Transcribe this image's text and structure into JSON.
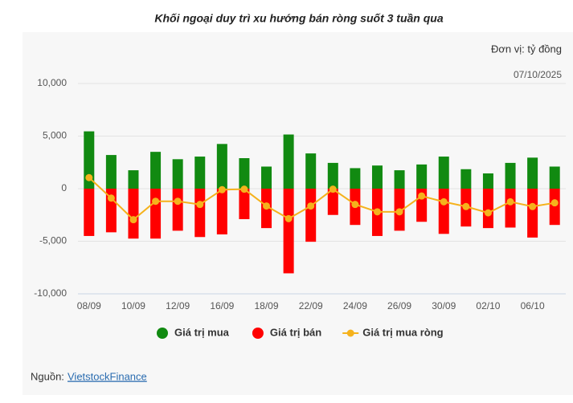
{
  "chart_data": {
    "type": "bar",
    "title": "Khối ngoại duy trì xu hướng bán ròng suốt 3 tuần qua",
    "unit_note": "Đơn vị: tỷ đồng",
    "date_note": "07/10/2025",
    "source_label": "Nguồn:",
    "source_link": "VietstockFinance",
    "categories": [
      "08/09",
      null,
      "10/09",
      null,
      "12/09",
      null,
      "16/09",
      null,
      "18/09",
      null,
      "22/09",
      null,
      "24/09",
      null,
      "26/09",
      null,
      "30/09",
      null,
      "02/10",
      null,
      "06/10",
      null
    ],
    "series": [
      {
        "name": "Giá trị mua",
        "type": "bar",
        "color": "#118a11",
        "values": [
          5450,
          3200,
          1750,
          3500,
          2800,
          3050,
          4250,
          2900,
          2100,
          5150,
          3350,
          2450,
          1950,
          2200,
          1750,
          2300,
          3050,
          1850,
          1450,
          2450,
          2950,
          2100
        ]
      },
      {
        "name": "Giá trị bán",
        "type": "bar",
        "color": "#ff0000",
        "values": [
          -4500,
          -4150,
          -4750,
          -4750,
          -4000,
          -4600,
          -4350,
          -2900,
          -3750,
          -8050,
          -5050,
          -2500,
          -3450,
          -4500,
          -4000,
          -3150,
          -4300,
          -3600,
          -3750,
          -3700,
          -4650,
          -3450
        ]
      },
      {
        "name": "Giá trị mua ròng",
        "type": "line",
        "color": "#f5b21c",
        "values": [
          1050,
          -900,
          -2950,
          -1200,
          -1200,
          -1500,
          -100,
          -50,
          -1650,
          -2850,
          -1650,
          -50,
          -1500,
          -2200,
          -2200,
          -700,
          -1250,
          -1700,
          -2300,
          -1250,
          -1700,
          -1350
        ]
      }
    ],
    "ylim": [
      -10000,
      10000
    ],
    "yticks": [
      {
        "value": -10000,
        "label": "-10,000"
      },
      {
        "value": -5000,
        "label": "-5,000"
      },
      0,
      {
        "value": 5000,
        "label": "5,000"
      },
      {
        "value": 10000,
        "label": "10,000"
      }
    ],
    "grid": true
  }
}
